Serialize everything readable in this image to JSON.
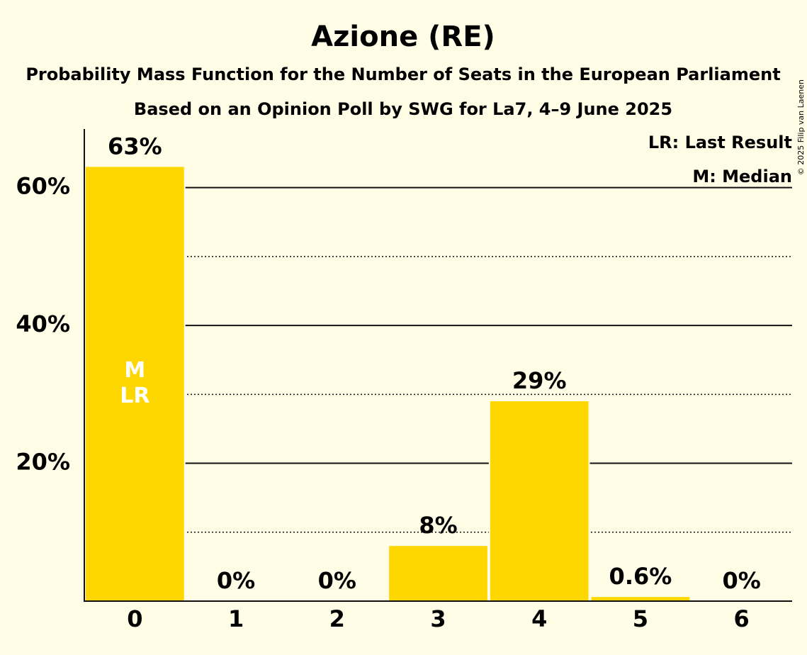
{
  "chart_data": {
    "type": "bar",
    "title": "Azione (RE)",
    "subtitle": "Probability Mass Function for the Number of Seats in the European Parliament",
    "subtitle2": "Based on an Opinion Poll by SWG for La7, 4–9 June 2025",
    "categories": [
      "0",
      "1",
      "2",
      "3",
      "4",
      "5",
      "6"
    ],
    "values": [
      63,
      0,
      0,
      8,
      29,
      0.6,
      0
    ],
    "value_labels": [
      "63%",
      "0%",
      "0%",
      "8%",
      "29%",
      "0.6%",
      "0%"
    ],
    "ylim": [
      0,
      68.5
    ],
    "ytick_values": [
      20,
      40,
      60
    ],
    "ytick_labels": [
      "20%",
      "40%",
      "60%"
    ],
    "minor_gridlines": [
      10,
      30,
      50
    ],
    "median_index": 0,
    "last_result_index": 0,
    "median_marker": "M",
    "last_result_marker": "LR",
    "legend": [
      "LR: Last Result",
      "M: Median"
    ],
    "copyright": "© 2025 Filip van Laenen",
    "colors": {
      "bar": "#FFD700",
      "background": "#FFFDE6",
      "axis": "#111111"
    }
  }
}
